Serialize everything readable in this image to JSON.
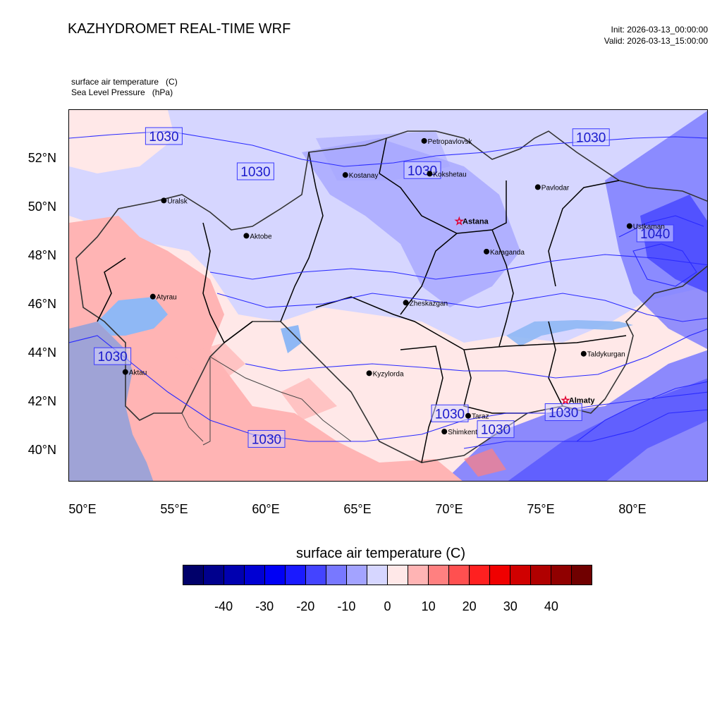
{
  "header": {
    "title": "KAZHYDROMET REAL-TIME WRF",
    "init": "Init: 2026-03-13_00:00:00",
    "valid": "Valid: 2026-03-13_15:00:00"
  },
  "fields": [
    "surface air temperature   (C)",
    "Sea Level Pressure   (hPa)"
  ],
  "axes": {
    "lat_labels": [
      "52°N",
      "50°N",
      "48°N",
      "46°N",
      "44°N",
      "42°N",
      "40°N"
    ],
    "lon_labels": [
      "50°E",
      "55°E",
      "60°E",
      "65°E",
      "70°E",
      "75°E",
      "80°E"
    ]
  },
  "cities": [
    {
      "name": "Petropavlovsk",
      "lon": 68.6,
      "lat": 52.7,
      "capital": false
    },
    {
      "name": "Kostanay",
      "lon": 64.3,
      "lat": 51.3,
      "capital": false
    },
    {
      "name": "Kokshetau",
      "lon": 68.9,
      "lat": 51.35,
      "capital": false
    },
    {
      "name": "Pavlodar",
      "lon": 74.8,
      "lat": 50.8,
      "capital": false
    },
    {
      "name": "Uralsk",
      "lon": 54.4,
      "lat": 50.25,
      "capital": false
    },
    {
      "name": "Astana",
      "lon": 70.5,
      "lat": 49.4,
      "capital": true
    },
    {
      "name": "Ustkaman",
      "lon": 79.8,
      "lat": 49.2,
      "capital": false
    },
    {
      "name": "Aktobe",
      "lon": 58.9,
      "lat": 48.8,
      "capital": false
    },
    {
      "name": "Karaganda",
      "lon": 72.0,
      "lat": 48.15,
      "capital": false
    },
    {
      "name": "Atyrau",
      "lon": 53.8,
      "lat": 46.3,
      "capital": false
    },
    {
      "name": "Zheskazgan",
      "lon": 67.6,
      "lat": 46.05,
      "capital": false
    },
    {
      "name": "Taldykurgan",
      "lon": 77.3,
      "lat": 43.95,
      "capital": false
    },
    {
      "name": "Kyzylorda",
      "lon": 65.6,
      "lat": 43.15,
      "capital": false
    },
    {
      "name": "Aktau",
      "lon": 52.3,
      "lat": 43.2,
      "capital": false
    },
    {
      "name": "Almaty",
      "lon": 76.3,
      "lat": 42.05,
      "capital": true
    },
    {
      "name": "Taraz",
      "lon": 71.0,
      "lat": 41.4,
      "capital": false
    },
    {
      "name": "Shimkent",
      "lon": 69.7,
      "lat": 40.75,
      "capital": false
    }
  ],
  "isobar_labels": [
    {
      "text": "1030",
      "lon": 54.4,
      "lat": 52.9
    },
    {
      "text": "1030",
      "lon": 59.4,
      "lat": 51.45
    },
    {
      "text": "1030",
      "lon": 77.7,
      "lat": 52.85
    },
    {
      "text": "1030",
      "lon": 68.5,
      "lat": 51.5
    },
    {
      "text": "1040",
      "lon": 81.2,
      "lat": 48.9
    },
    {
      "text": "1030",
      "lon": 51.6,
      "lat": 43.85
    },
    {
      "text": "1030",
      "lon": 70.0,
      "lat": 41.5
    },
    {
      "text": "1030",
      "lon": 72.5,
      "lat": 40.85
    },
    {
      "text": "1030",
      "lon": 76.2,
      "lat": 41.55
    },
    {
      "text": "1030",
      "lon": 60.0,
      "lat": 40.45
    }
  ],
  "colorbar": {
    "title": "surface air temperature  (C)",
    "ticks": [
      "-40",
      "-30",
      "-20",
      "-10",
      "0",
      "10",
      "20",
      "30",
      "40"
    ],
    "colors": [
      "#00006a",
      "#00008d",
      "#0000b0",
      "#0000d3",
      "#0000f5",
      "#1a1aff",
      "#4444ff",
      "#7878ff",
      "#a3a3ff",
      "#d6d6ff",
      "#ffe8e8",
      "#ffb4b4",
      "#ff8080",
      "#ff5050",
      "#ff2020",
      "#f00000",
      "#d00000",
      "#b00000",
      "#900000",
      "#700000"
    ]
  }
}
